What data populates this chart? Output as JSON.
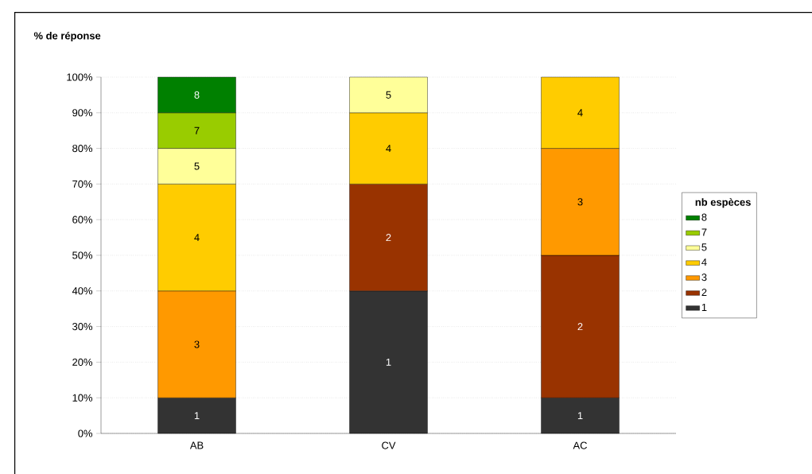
{
  "chart_data": {
    "type": "bar",
    "stacked": true,
    "ylabel": "% de réponse",
    "legend_title": "nb espèces",
    "legend": "right",
    "grid": "y",
    "categories": [
      "AB",
      "CV",
      "AC"
    ],
    "ylim": [
      0,
      100
    ],
    "yticks": [
      {
        "value": 0,
        "label": "0%"
      },
      {
        "value": 10,
        "label": "10%"
      },
      {
        "value": 20,
        "label": "20%"
      },
      {
        "value": 30,
        "label": "30%"
      },
      {
        "value": 40,
        "label": "40%"
      },
      {
        "value": 50,
        "label": "50%"
      },
      {
        "value": 60,
        "label": "60%"
      },
      {
        "value": 70,
        "label": "70%"
      },
      {
        "value": 80,
        "label": "80%"
      },
      {
        "value": 90,
        "label": "90%"
      },
      {
        "value": 100,
        "label": "100%"
      }
    ],
    "series": [
      {
        "name": "1",
        "color": "#333333",
        "values": [
          10,
          40,
          10
        ]
      },
      {
        "name": "2",
        "color": "#993300",
        "values": [
          null,
          30,
          40
        ]
      },
      {
        "name": "3",
        "color": "#ff9900",
        "values": [
          30,
          null,
          30
        ]
      },
      {
        "name": "4",
        "color": "#ffcc00",
        "values": [
          30,
          20,
          20
        ]
      },
      {
        "name": "5",
        "color": "#ffff99",
        "values": [
          10,
          10,
          null
        ]
      },
      {
        "name": "7",
        "color": "#99cc00",
        "values": [
          10,
          null,
          null
        ]
      },
      {
        "name": "8",
        "color": "#008000",
        "values": [
          10,
          null,
          null
        ]
      }
    ]
  }
}
